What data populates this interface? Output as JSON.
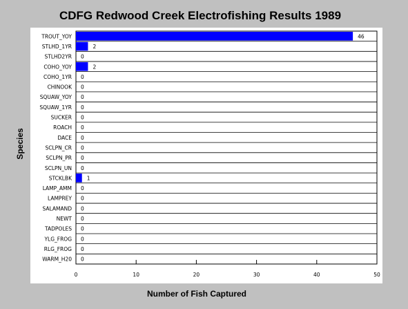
{
  "chart_data": {
    "type": "bar",
    "orientation": "horizontal",
    "title": "CDFG Redwood Creek Electrofishing Results 1989",
    "xlabel": "Number of Fish Captured",
    "ylabel": "Species",
    "xlim": [
      0,
      50
    ],
    "xticks": [
      0,
      10,
      20,
      30,
      40,
      50
    ],
    "grid": true,
    "bar_color": "#0000ff",
    "categories": [
      "TROUT_YOY",
      "STLHD_1YR",
      "STLHD2YR",
      "COHO_YOY",
      "COHO_1YR",
      "CHINOOK",
      "SQUAW_YOY",
      "SQUAW_1YR",
      "SUCKER",
      "ROACH",
      "DACE",
      "SCLPN_CR",
      "SCLPN_PR",
      "SCLPN_UN",
      "STCKLBK",
      "LAMP_AMM",
      "LAMPREY",
      "SALAMAND",
      "NEWT",
      "TADPOLES",
      "YLG_FROG",
      "RLG_FROG",
      "WARM_H20"
    ],
    "values": [
      46,
      2,
      0,
      2,
      0,
      0,
      0,
      0,
      0,
      0,
      0,
      0,
      0,
      0,
      1,
      0,
      0,
      0,
      0,
      0,
      0,
      0,
      0
    ]
  }
}
